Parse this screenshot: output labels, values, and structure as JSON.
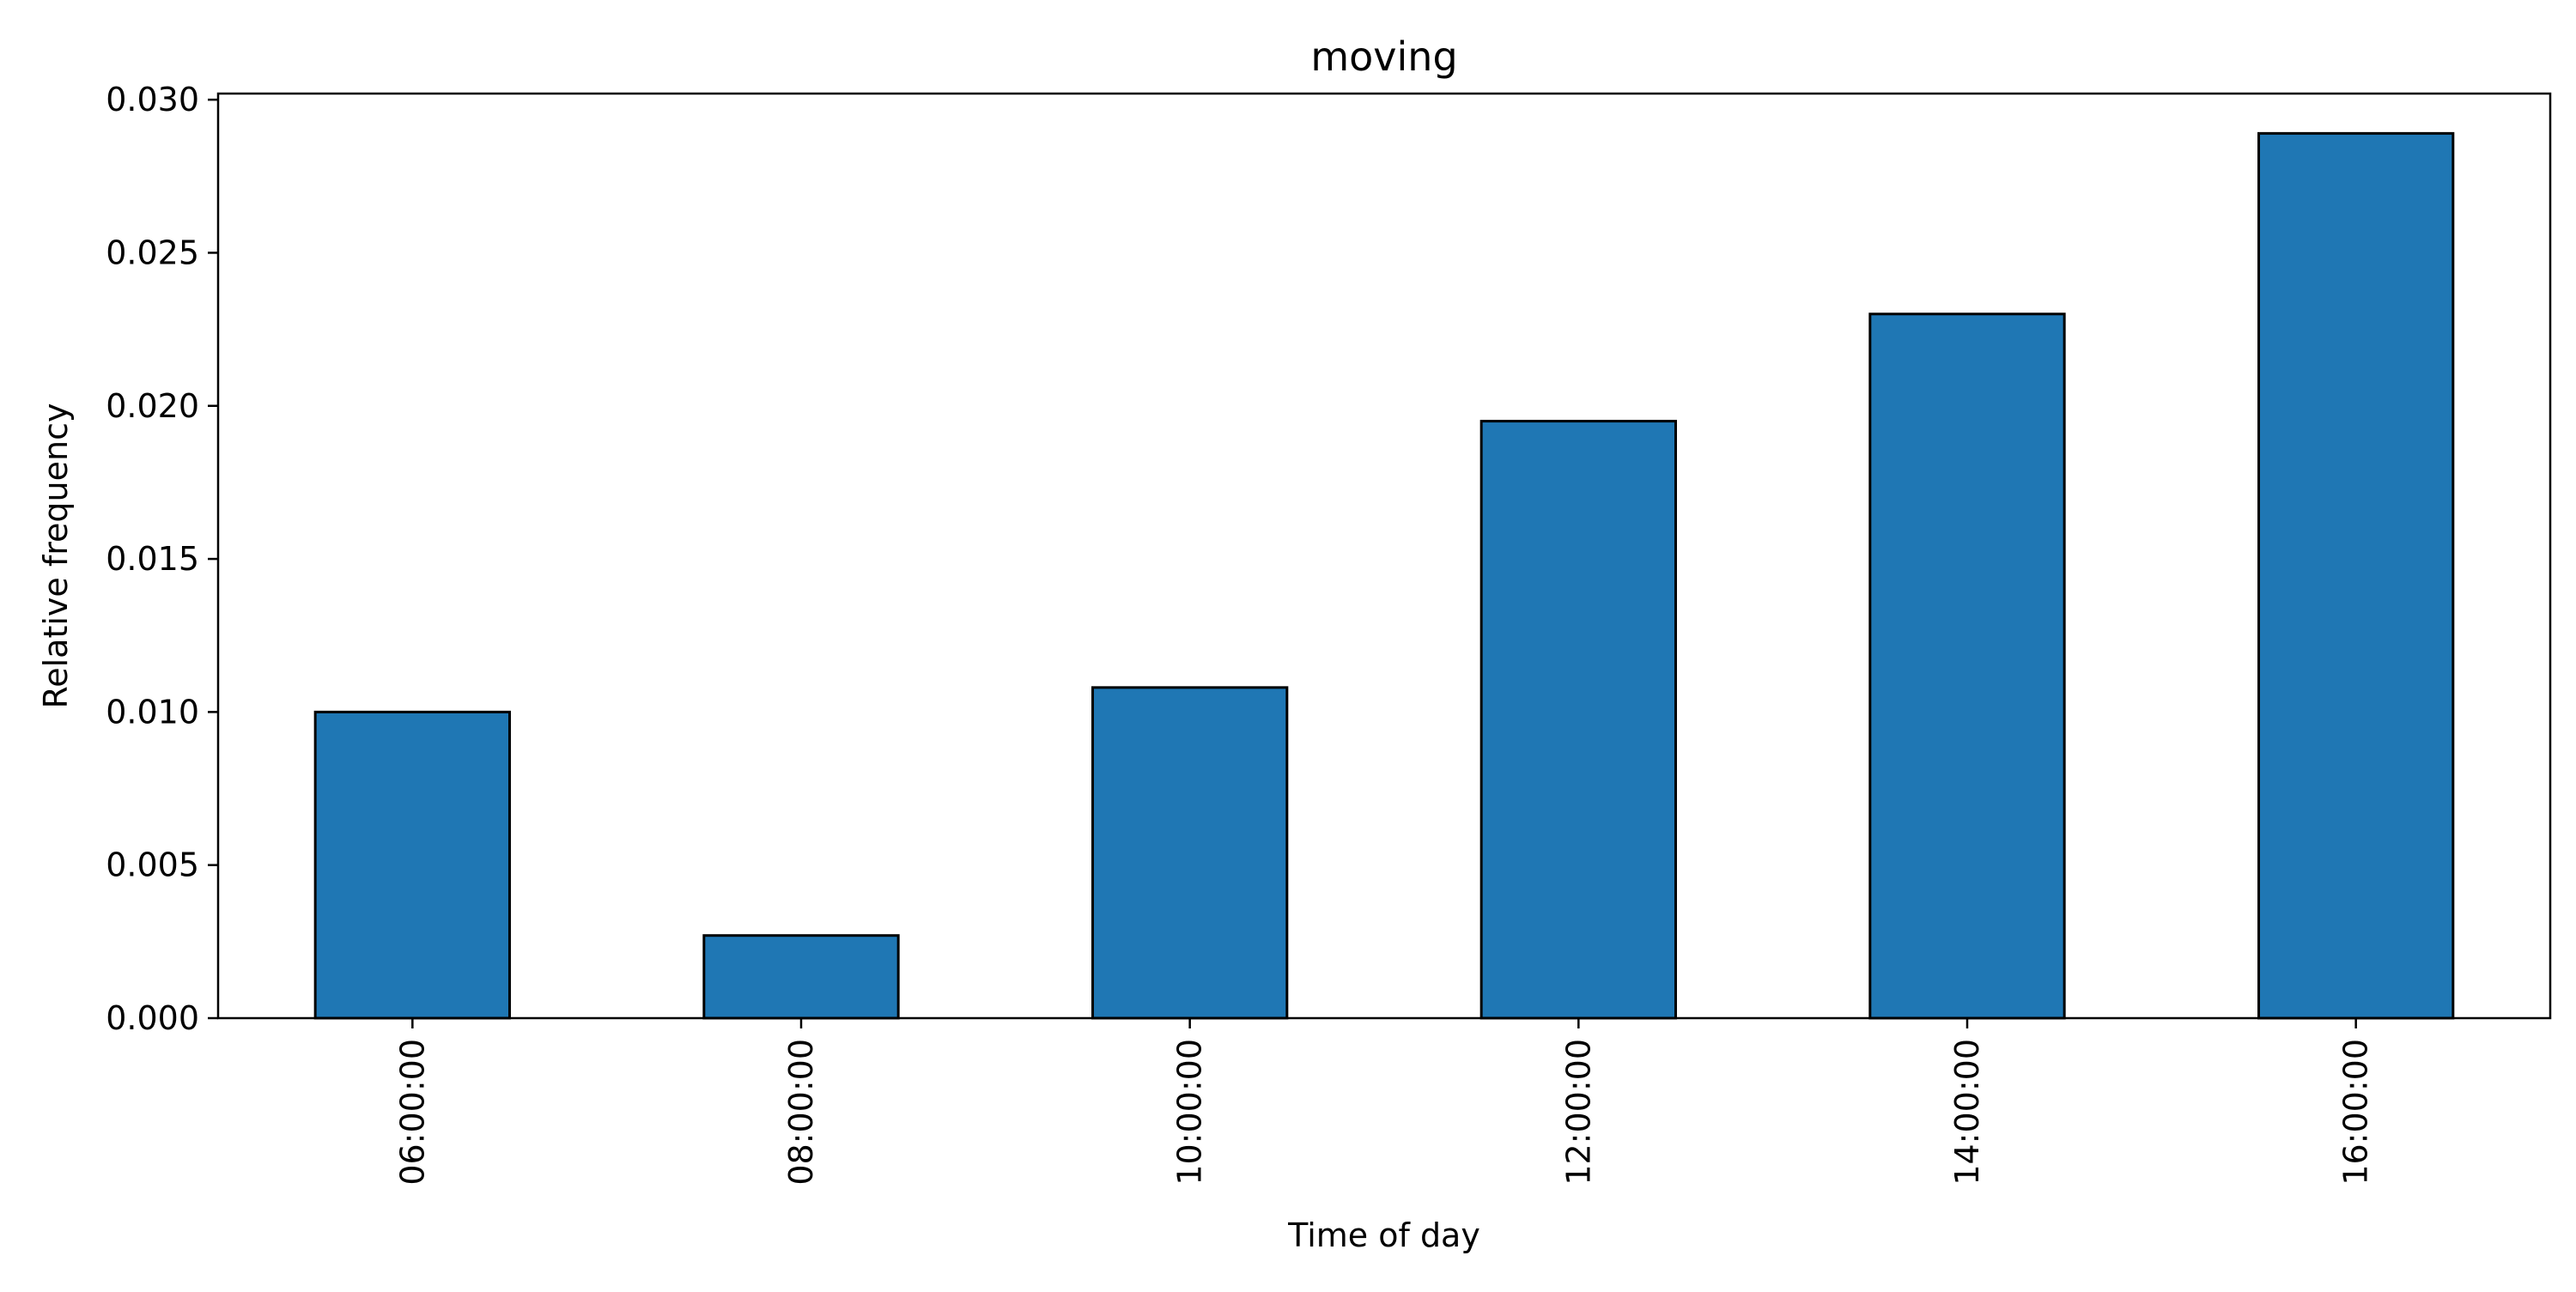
{
  "colors": {
    "bar_fill": "#1f77b4",
    "bar_edge": "#000000",
    "axis": "#000000",
    "background": "#ffffff"
  },
  "chart_data": {
    "type": "bar",
    "title": "moving",
    "xlabel": "Time of day",
    "ylabel": "Relative frequency",
    "categories": [
      "06:00:00",
      "08:00:00",
      "10:00:00",
      "12:00:00",
      "14:00:00",
      "16:00:00"
    ],
    "values": [
      0.01,
      0.0027,
      0.0108,
      0.0195,
      0.023,
      0.0289
    ],
    "ylim": [
      0,
      0.0302
    ],
    "yticks": [
      0.0,
      0.005,
      0.01,
      0.015,
      0.02,
      0.025,
      0.03
    ],
    "ytick_labels": [
      "0.000",
      "0.005",
      "0.010",
      "0.015",
      "0.020",
      "0.025",
      "0.030"
    ],
    "xtick_rotation": "vertical",
    "grid": false,
    "legend": "none"
  }
}
